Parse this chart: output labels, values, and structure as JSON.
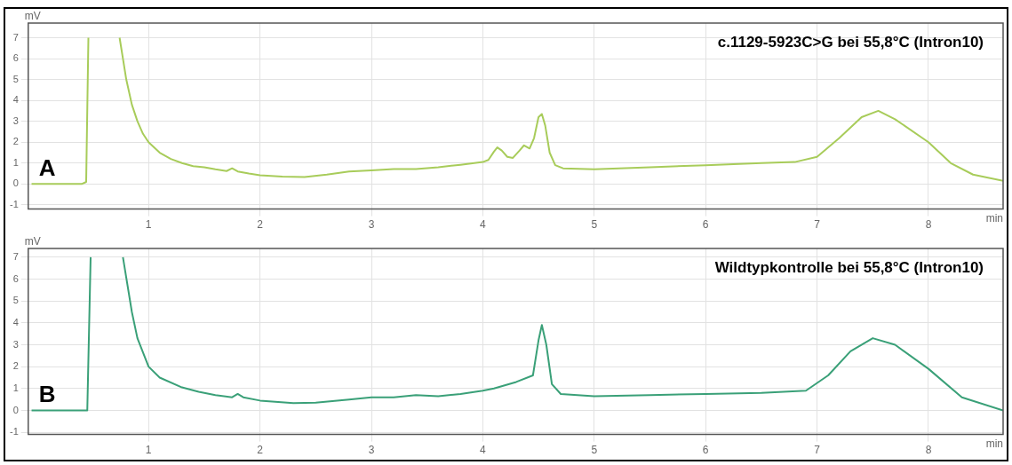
{
  "chart_data": [
    {
      "type": "line",
      "title": "c.1129-5923C>G bei 55,8°C (Intron10)",
      "xlabel": "min",
      "ylabel": "mV",
      "annotations": [
        "A"
      ],
      "x": [
        -0.05,
        0.4,
        0.44,
        0.46,
        0.6,
        0.74,
        0.8,
        0.85,
        0.9,
        0.95,
        1.0,
        1.1,
        1.2,
        1.3,
        1.4,
        1.5,
        1.6,
        1.7,
        1.75,
        1.8,
        1.9,
        2.0,
        2.2,
        2.4,
        2.6,
        2.8,
        3.0,
        3.2,
        3.4,
        3.6,
        3.8,
        4.0,
        4.05,
        4.1,
        4.13,
        4.17,
        4.22,
        4.27,
        4.33,
        4.37,
        4.42,
        4.46,
        4.5,
        4.53,
        4.56,
        4.6,
        4.65,
        4.72,
        5.0,
        5.5,
        6.0,
        6.5,
        6.8,
        7.0,
        7.2,
        7.4,
        7.55,
        7.7,
        8.0,
        8.2,
        8.4,
        8.67
      ],
      "series": [
        {
          "color": "#a8cc5a",
          "values": [
            0,
            0,
            0.1,
            7,
            null,
            7,
            5,
            3.8,
            3,
            2.4,
            2.0,
            1.5,
            1.2,
            1.0,
            0.85,
            0.8,
            0.7,
            0.62,
            0.75,
            0.6,
            0.5,
            0.42,
            0.35,
            0.33,
            0.45,
            0.6,
            0.65,
            0.72,
            0.72,
            0.8,
            0.92,
            1.05,
            1.15,
            1.55,
            1.75,
            1.6,
            1.3,
            1.25,
            1.6,
            1.85,
            1.7,
            2.2,
            3.2,
            3.35,
            2.8,
            1.5,
            0.9,
            0.75,
            0.7,
            0.8,
            0.9,
            1.0,
            1.05,
            1.3,
            2.2,
            3.2,
            3.5,
            3.1,
            2.0,
            1.0,
            0.45,
            0.15
          ]
        }
      ],
      "xlim": [
        -0.08,
        8.67
      ],
      "xticks": [
        1,
        2,
        3,
        4,
        5,
        6,
        7,
        8
      ],
      "ylim": [
        -1.2,
        7.7
      ],
      "yticks": [
        -1,
        0,
        1,
        2,
        3,
        4,
        5,
        6,
        7
      ],
      "grid": true
    },
    {
      "type": "line",
      "title": "Wildtypkontrolle bei 55,8°C (Intron10)",
      "xlabel": "min",
      "ylabel": "mV",
      "annotations": [
        "B"
      ],
      "x": [
        -0.05,
        0.45,
        0.48,
        0.62,
        0.77,
        0.85,
        0.9,
        1.0,
        1.1,
        1.3,
        1.45,
        1.6,
        1.75,
        1.8,
        1.85,
        2.0,
        2.3,
        2.5,
        2.8,
        3.0,
        3.2,
        3.4,
        3.6,
        3.8,
        4.0,
        4.1,
        4.3,
        4.45,
        4.5,
        4.53,
        4.57,
        4.62,
        4.7,
        5.0,
        5.5,
        6.0,
        6.5,
        6.9,
        7.1,
        7.3,
        7.5,
        7.7,
        8.0,
        8.3,
        8.67
      ],
      "series": [
        {
          "color": "#3aa078",
          "values": [
            0,
            0,
            7,
            null,
            7,
            4.5,
            3.3,
            2.0,
            1.5,
            1.05,
            0.85,
            0.7,
            0.6,
            0.75,
            0.6,
            0.45,
            0.33,
            0.35,
            0.5,
            0.6,
            0.6,
            0.7,
            0.65,
            0.75,
            0.9,
            1.0,
            1.3,
            1.6,
            3.2,
            3.9,
            3.0,
            1.2,
            0.75,
            0.65,
            0.7,
            0.75,
            0.8,
            0.9,
            1.6,
            2.7,
            3.3,
            3.0,
            1.9,
            0.6,
            0.0
          ]
        }
      ],
      "xlim": [
        -0.08,
        8.67
      ],
      "xticks": [
        1,
        2,
        3,
        4,
        5,
        6,
        7,
        8
      ],
      "ylim": [
        -1.1,
        7.4
      ],
      "yticks": [
        -1,
        0,
        1,
        2,
        3,
        4,
        5,
        6,
        7
      ],
      "grid": true
    }
  ]
}
